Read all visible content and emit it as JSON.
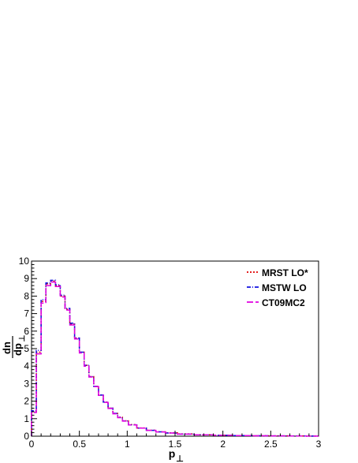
{
  "chart_data": {
    "type": "line",
    "title": "",
    "xlabel": "p",
    "xlabel_sub": "⊥",
    "ylabel_num": "dn",
    "ylabel_den": "dp",
    "ylabel_sub": "⊥",
    "xlim": [
      0,
      3
    ],
    "ylim": [
      0,
      10
    ],
    "x_ticks": [
      0,
      0.5,
      1,
      1.5,
      2,
      2.5,
      3
    ],
    "x_tick_labels": [
      "0",
      "0.5",
      "1",
      "1.5",
      "2",
      "2.5",
      "3"
    ],
    "y_ticks": [
      0,
      1,
      2,
      3,
      4,
      5,
      6,
      7,
      8,
      9,
      10
    ],
    "y_tick_labels": [
      "0",
      "1",
      "2",
      "3",
      "4",
      "5",
      "6",
      "7",
      "8",
      "9",
      "10"
    ],
    "grid": false,
    "legend_position": "top-right",
    "x": [
      0.025,
      0.075,
      0.125,
      0.175,
      0.225,
      0.275,
      0.325,
      0.375,
      0.425,
      0.475,
      0.525,
      0.575,
      0.625,
      0.675,
      0.725,
      0.775,
      0.825,
      0.875,
      0.925,
      0.975,
      1.05,
      1.15,
      1.25,
      1.35,
      1.45,
      1.6,
      1.8,
      2.0,
      2.2,
      2.4,
      2.6,
      2.8,
      2.95
    ],
    "series": [
      {
        "name": "MRST LO*",
        "color": "#e00000",
        "dash": "2,2",
        "values": [
          1.4,
          4.8,
          7.7,
          8.7,
          8.85,
          8.6,
          8.0,
          7.25,
          6.4,
          5.6,
          4.8,
          4.05,
          3.4,
          2.85,
          2.35,
          1.95,
          1.6,
          1.3,
          1.08,
          0.88,
          0.66,
          0.47,
          0.34,
          0.25,
          0.19,
          0.13,
          0.08,
          0.05,
          0.035,
          0.025,
          0.018,
          0.012,
          0.008
        ]
      },
      {
        "name": "MSTW LO",
        "color": "#1010e0",
        "dash": "5,2,1,2",
        "values": [
          1.45,
          4.9,
          7.8,
          8.75,
          8.9,
          8.65,
          8.05,
          7.3,
          6.45,
          5.6,
          4.8,
          4.05,
          3.4,
          2.85,
          2.35,
          1.95,
          1.6,
          1.3,
          1.07,
          0.87,
          0.65,
          0.46,
          0.33,
          0.25,
          0.18,
          0.12,
          0.08,
          0.05,
          0.035,
          0.025,
          0.018,
          0.012,
          0.008
        ]
      },
      {
        "name": "CT09MC2",
        "color": "#e000e0",
        "dash": "8,3",
        "values": [
          1.35,
          4.7,
          7.6,
          8.6,
          8.8,
          8.55,
          7.95,
          7.2,
          6.35,
          5.55,
          4.75,
          4.0,
          3.38,
          2.83,
          2.33,
          1.93,
          1.58,
          1.28,
          1.06,
          0.86,
          0.64,
          0.46,
          0.33,
          0.24,
          0.18,
          0.12,
          0.08,
          0.05,
          0.035,
          0.025,
          0.018,
          0.012,
          0.008
        ]
      }
    ]
  }
}
